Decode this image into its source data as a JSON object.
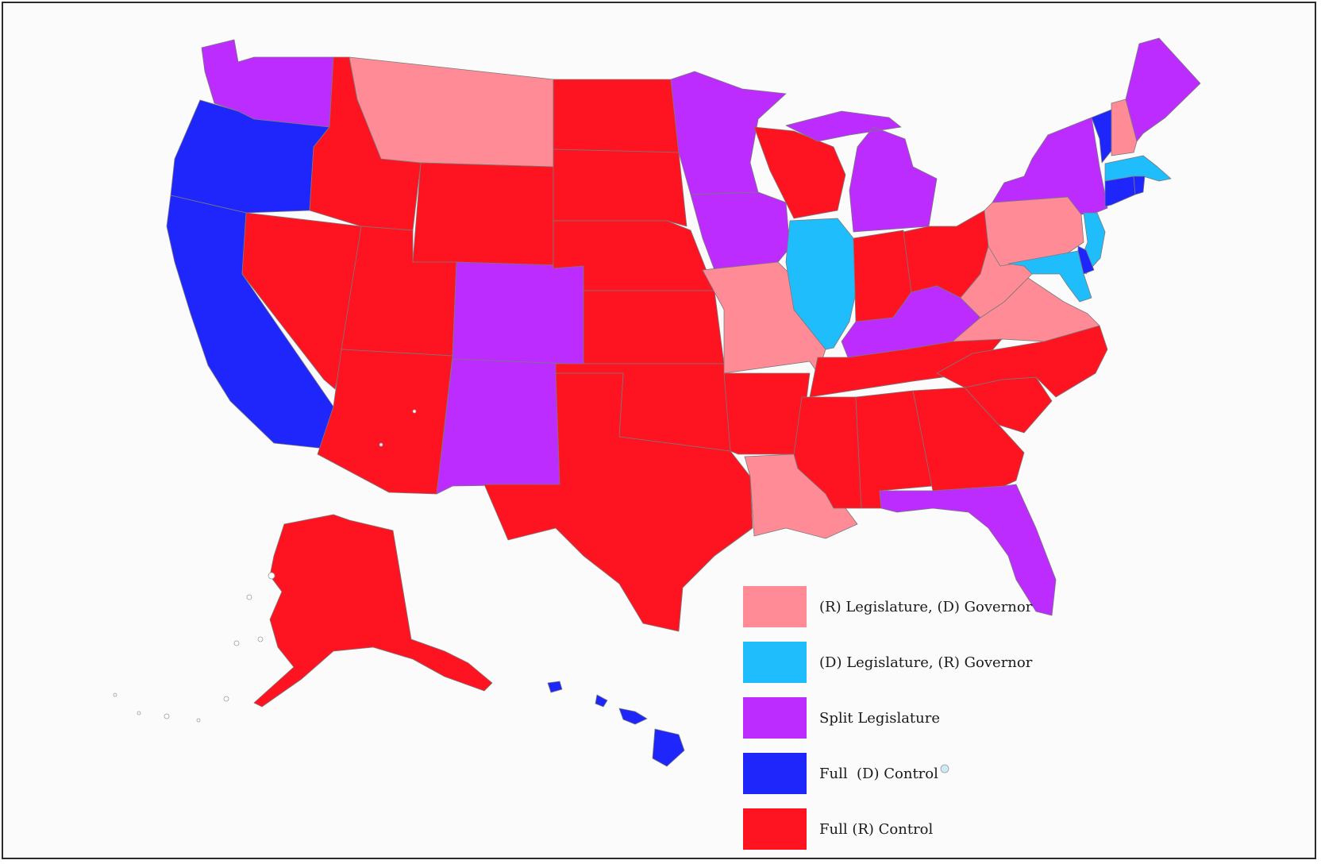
{
  "colors": {
    "r_leg_d_gov": "#ff8b97",
    "d_leg_r_gov": "#20bdfc",
    "split": "#bd2cff",
    "full_d": "#1f26fb",
    "full_r": "#fe1421"
  },
  "legend": {
    "items": [
      {
        "key": "r_leg_d_gov",
        "label": "(R) Legislature, (D) Governor"
      },
      {
        "key": "d_leg_r_gov",
        "label": "(D) Legislature, (R) Governor"
      },
      {
        "key": "split",
        "label": "Split Legislature"
      },
      {
        "key": "full_d",
        "label": "Full  (D) Control"
      },
      {
        "key": "full_r",
        "label": "Full (R) Control"
      }
    ]
  },
  "states": [
    {
      "code": "WA",
      "control": "split"
    },
    {
      "code": "OR",
      "control": "full_d"
    },
    {
      "code": "CA",
      "control": "full_d"
    },
    {
      "code": "NV",
      "control": "full_r"
    },
    {
      "code": "ID",
      "control": "full_r"
    },
    {
      "code": "MT",
      "control": "r_leg_d_gov"
    },
    {
      "code": "WY",
      "control": "full_r"
    },
    {
      "code": "UT",
      "control": "full_r"
    },
    {
      "code": "AZ",
      "control": "full_r"
    },
    {
      "code": "CO",
      "control": "split"
    },
    {
      "code": "NM",
      "control": "split"
    },
    {
      "code": "ND",
      "control": "full_r"
    },
    {
      "code": "SD",
      "control": "full_r"
    },
    {
      "code": "NE",
      "control": "full_r"
    },
    {
      "code": "KS",
      "control": "full_r"
    },
    {
      "code": "OK",
      "control": "full_r"
    },
    {
      "code": "TX",
      "control": "full_r"
    },
    {
      "code": "MN",
      "control": "split"
    },
    {
      "code": "IA",
      "control": "split"
    },
    {
      "code": "MO",
      "control": "r_leg_d_gov"
    },
    {
      "code": "AR",
      "control": "full_r"
    },
    {
      "code": "LA",
      "control": "r_leg_d_gov"
    },
    {
      "code": "WI",
      "control": "full_r"
    },
    {
      "code": "IL",
      "control": "d_leg_r_gov"
    },
    {
      "code": "MI",
      "control": "split"
    },
    {
      "code": "IN",
      "control": "full_r"
    },
    {
      "code": "OH",
      "control": "full_r"
    },
    {
      "code": "KY",
      "control": "split"
    },
    {
      "code": "TN",
      "control": "full_r"
    },
    {
      "code": "MS",
      "control": "full_r"
    },
    {
      "code": "AL",
      "control": "full_r"
    },
    {
      "code": "GA",
      "control": "full_r"
    },
    {
      "code": "FL",
      "control": "split"
    },
    {
      "code": "SC",
      "control": "full_r"
    },
    {
      "code": "NC",
      "control": "full_r"
    },
    {
      "code": "VA",
      "control": "r_leg_d_gov"
    },
    {
      "code": "WV",
      "control": "r_leg_d_gov"
    },
    {
      "code": "PA",
      "control": "r_leg_d_gov"
    },
    {
      "code": "NY",
      "control": "split"
    },
    {
      "code": "VT",
      "control": "full_d"
    },
    {
      "code": "NH",
      "control": "r_leg_d_gov"
    },
    {
      "code": "ME",
      "control": "split"
    },
    {
      "code": "MA",
      "control": "d_leg_r_gov"
    },
    {
      "code": "CT",
      "control": "full_d"
    },
    {
      "code": "RI",
      "control": "full_d"
    },
    {
      "code": "NJ",
      "control": "d_leg_r_gov"
    },
    {
      "code": "DE",
      "control": "full_d"
    },
    {
      "code": "MD",
      "control": "d_leg_r_gov"
    },
    {
      "code": "AK",
      "control": "full_r"
    },
    {
      "code": "HI",
      "control": "full_d"
    }
  ]
}
